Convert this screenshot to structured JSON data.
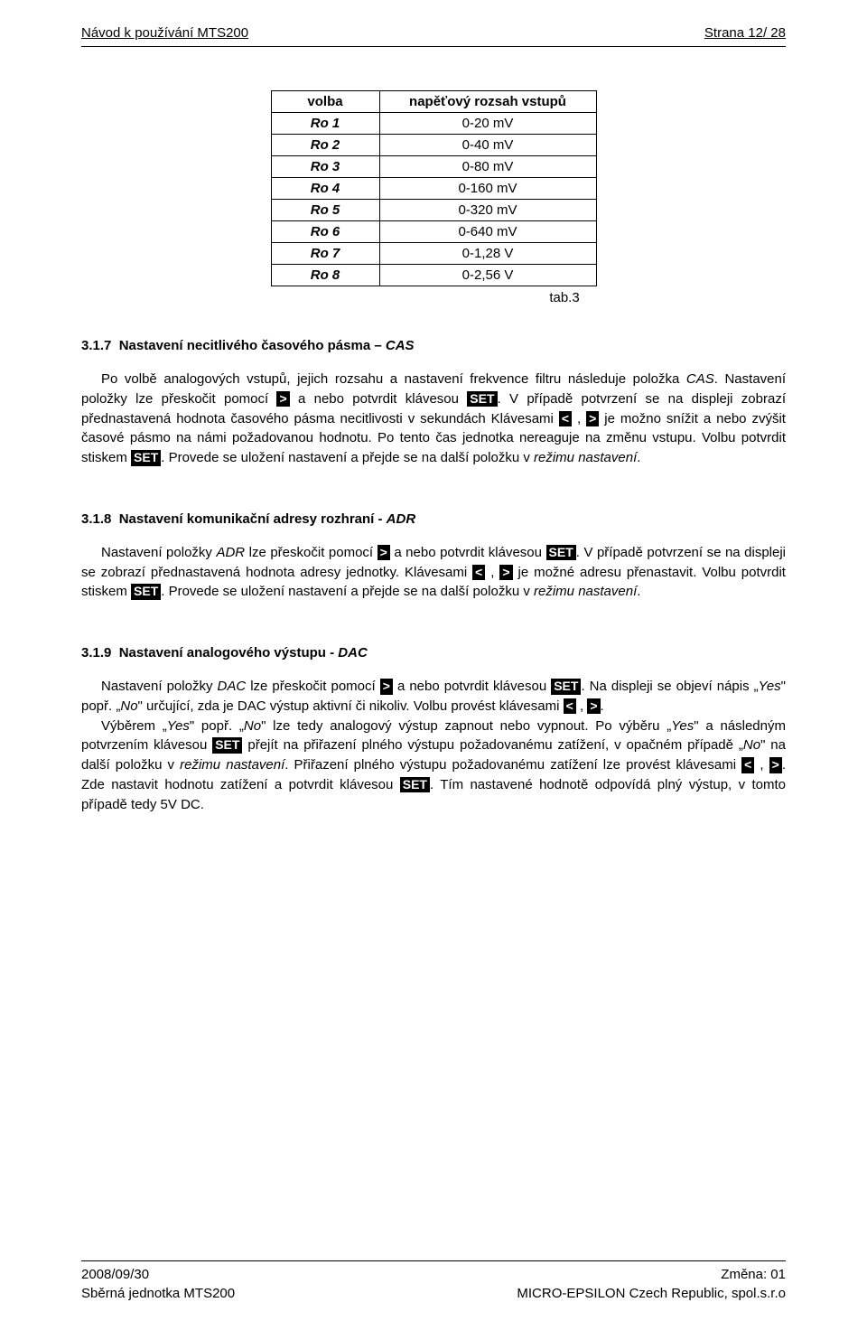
{
  "header": {
    "left": "Návod k používání  MTS200",
    "right": "Strana 12/ 28"
  },
  "table": {
    "col1_header": "volba",
    "col2_header": "napěťový rozsah vstupů",
    "rows": [
      {
        "c1": "Ro 1",
        "c2": "0-20 mV"
      },
      {
        "c1": "Ro 2",
        "c2": "0-40 mV"
      },
      {
        "c1": "Ro 3",
        "c2": "0-80 mV"
      },
      {
        "c1": "Ro 4",
        "c2": "0-160 mV"
      },
      {
        "c1": "Ro 5",
        "c2": "0-320 mV"
      },
      {
        "c1": "Ro 6",
        "c2": "0-640 mV"
      },
      {
        "c1": "Ro 7",
        "c2": "0-1,28 V"
      },
      {
        "c1": "Ro 8",
        "c2": "0-2,56 V"
      }
    ],
    "caption": "tab.3"
  },
  "sec317": {
    "num": "3.1.7",
    "title_a": "Nastavení necitlivého časového pásma – ",
    "title_b": "CAS",
    "p1a": "Po volbě analogových vstupů, jejich rozsahu a nastavení frekvence filtru následuje položka ",
    "p1b": "CAS",
    "p1c": ". Nastavení položky lze přeskočit pomocí ",
    "k_gt": ">",
    "p1d": " a nebo potvrdit klávesou ",
    "k_set": "SET",
    "p1e": ". V případě potvrzení se na displeji zobrazí přednastavená hodnota časového pásma necitlivosti v sekundách Klávesami ",
    "k_lt": "<",
    "p1f": " , ",
    "p1g": " je možno snížit a nebo zvýšit časové pásmo na námi požadovanou hodnotu. Po tento čas jednotka nereaguje na změnu vstupu. Volbu potvrdit stiskem ",
    "p1h": ". Provede se uložení nastavení a přejde se na další položku v ",
    "p1i": "režimu nastavení",
    "p1j": "."
  },
  "sec318": {
    "num": "3.1.8",
    "title_a": "Nastavení komunikační adresy rozhraní - ",
    "title_b": "ADR",
    "p1a": "Nastavení položky ",
    "p1b": "ADR",
    "p1c": " lze přeskočit pomocí ",
    "p1d": " a nebo potvrdit klávesou ",
    "p1e": ". V případě potvrzení se na displeji se zobrazí přednastavená hodnota adresy jednotky. Klávesami ",
    "p1f": " , ",
    "p1g": " je možné adresu přenastavit. Volbu potvrdit stiskem ",
    "p1h": ". Provede se uložení nastavení a přejde se na další položku v ",
    "p1i": "režimu nastavení",
    "p1j": "."
  },
  "sec319": {
    "num": "3.1.9",
    "title_a": "Nastavení analogového výstupu - ",
    "title_b": "DAC",
    "p1a": "Nastavení položky ",
    "p1b": "DAC",
    "p1c": " lze přeskočit pomocí ",
    "p1d": " a nebo potvrdit klávesou ",
    "p1e": ". Na displeji se objeví nápis „",
    "p1f": "Yes",
    "p1g": "\" popř. „",
    "p1h": "No",
    "p1i": "\" určující, zda je DAC výstup aktivní či nikoliv. Volbu provést klávesami  ",
    "p1j": " , ",
    "p1k": ".",
    "p2a": "Výběrem „",
    "p2b": "Yes",
    "p2c": "\" popř. „",
    "p2d": "No",
    "p2e": "\" lze tedy analogový výstup zapnout nebo vypnout. Po výběru „",
    "p2f": "Yes",
    "p2g": "\" a následným potvrzením klávesou ",
    "p2h": " přejít na přiřazení plného výstupu požadovanému zatížení, v opačném případě „",
    "p2i": "No",
    "p2j": "\" na další položku v ",
    "p2k": "režimu nastavení",
    "p2l": ". Přiřazení plného výstupu požadovanému zatížení lze provést klávesami  ",
    "p2m": " , ",
    "p2n": ". Zde nastavit hodnotu zatížení a potvrdit klávesou ",
    "p2o": ". Tím nastavené hodnotě odpovídá plný výstup, v tomto případě tedy 5V DC."
  },
  "footer": {
    "l1_left": "2008/09/30",
    "l1_right": "Změna: 01",
    "l2_left": "Sběrná jednotka MTS200",
    "l2_right": "MICRO-EPSILON Czech Republic, spol.s.r.o"
  }
}
